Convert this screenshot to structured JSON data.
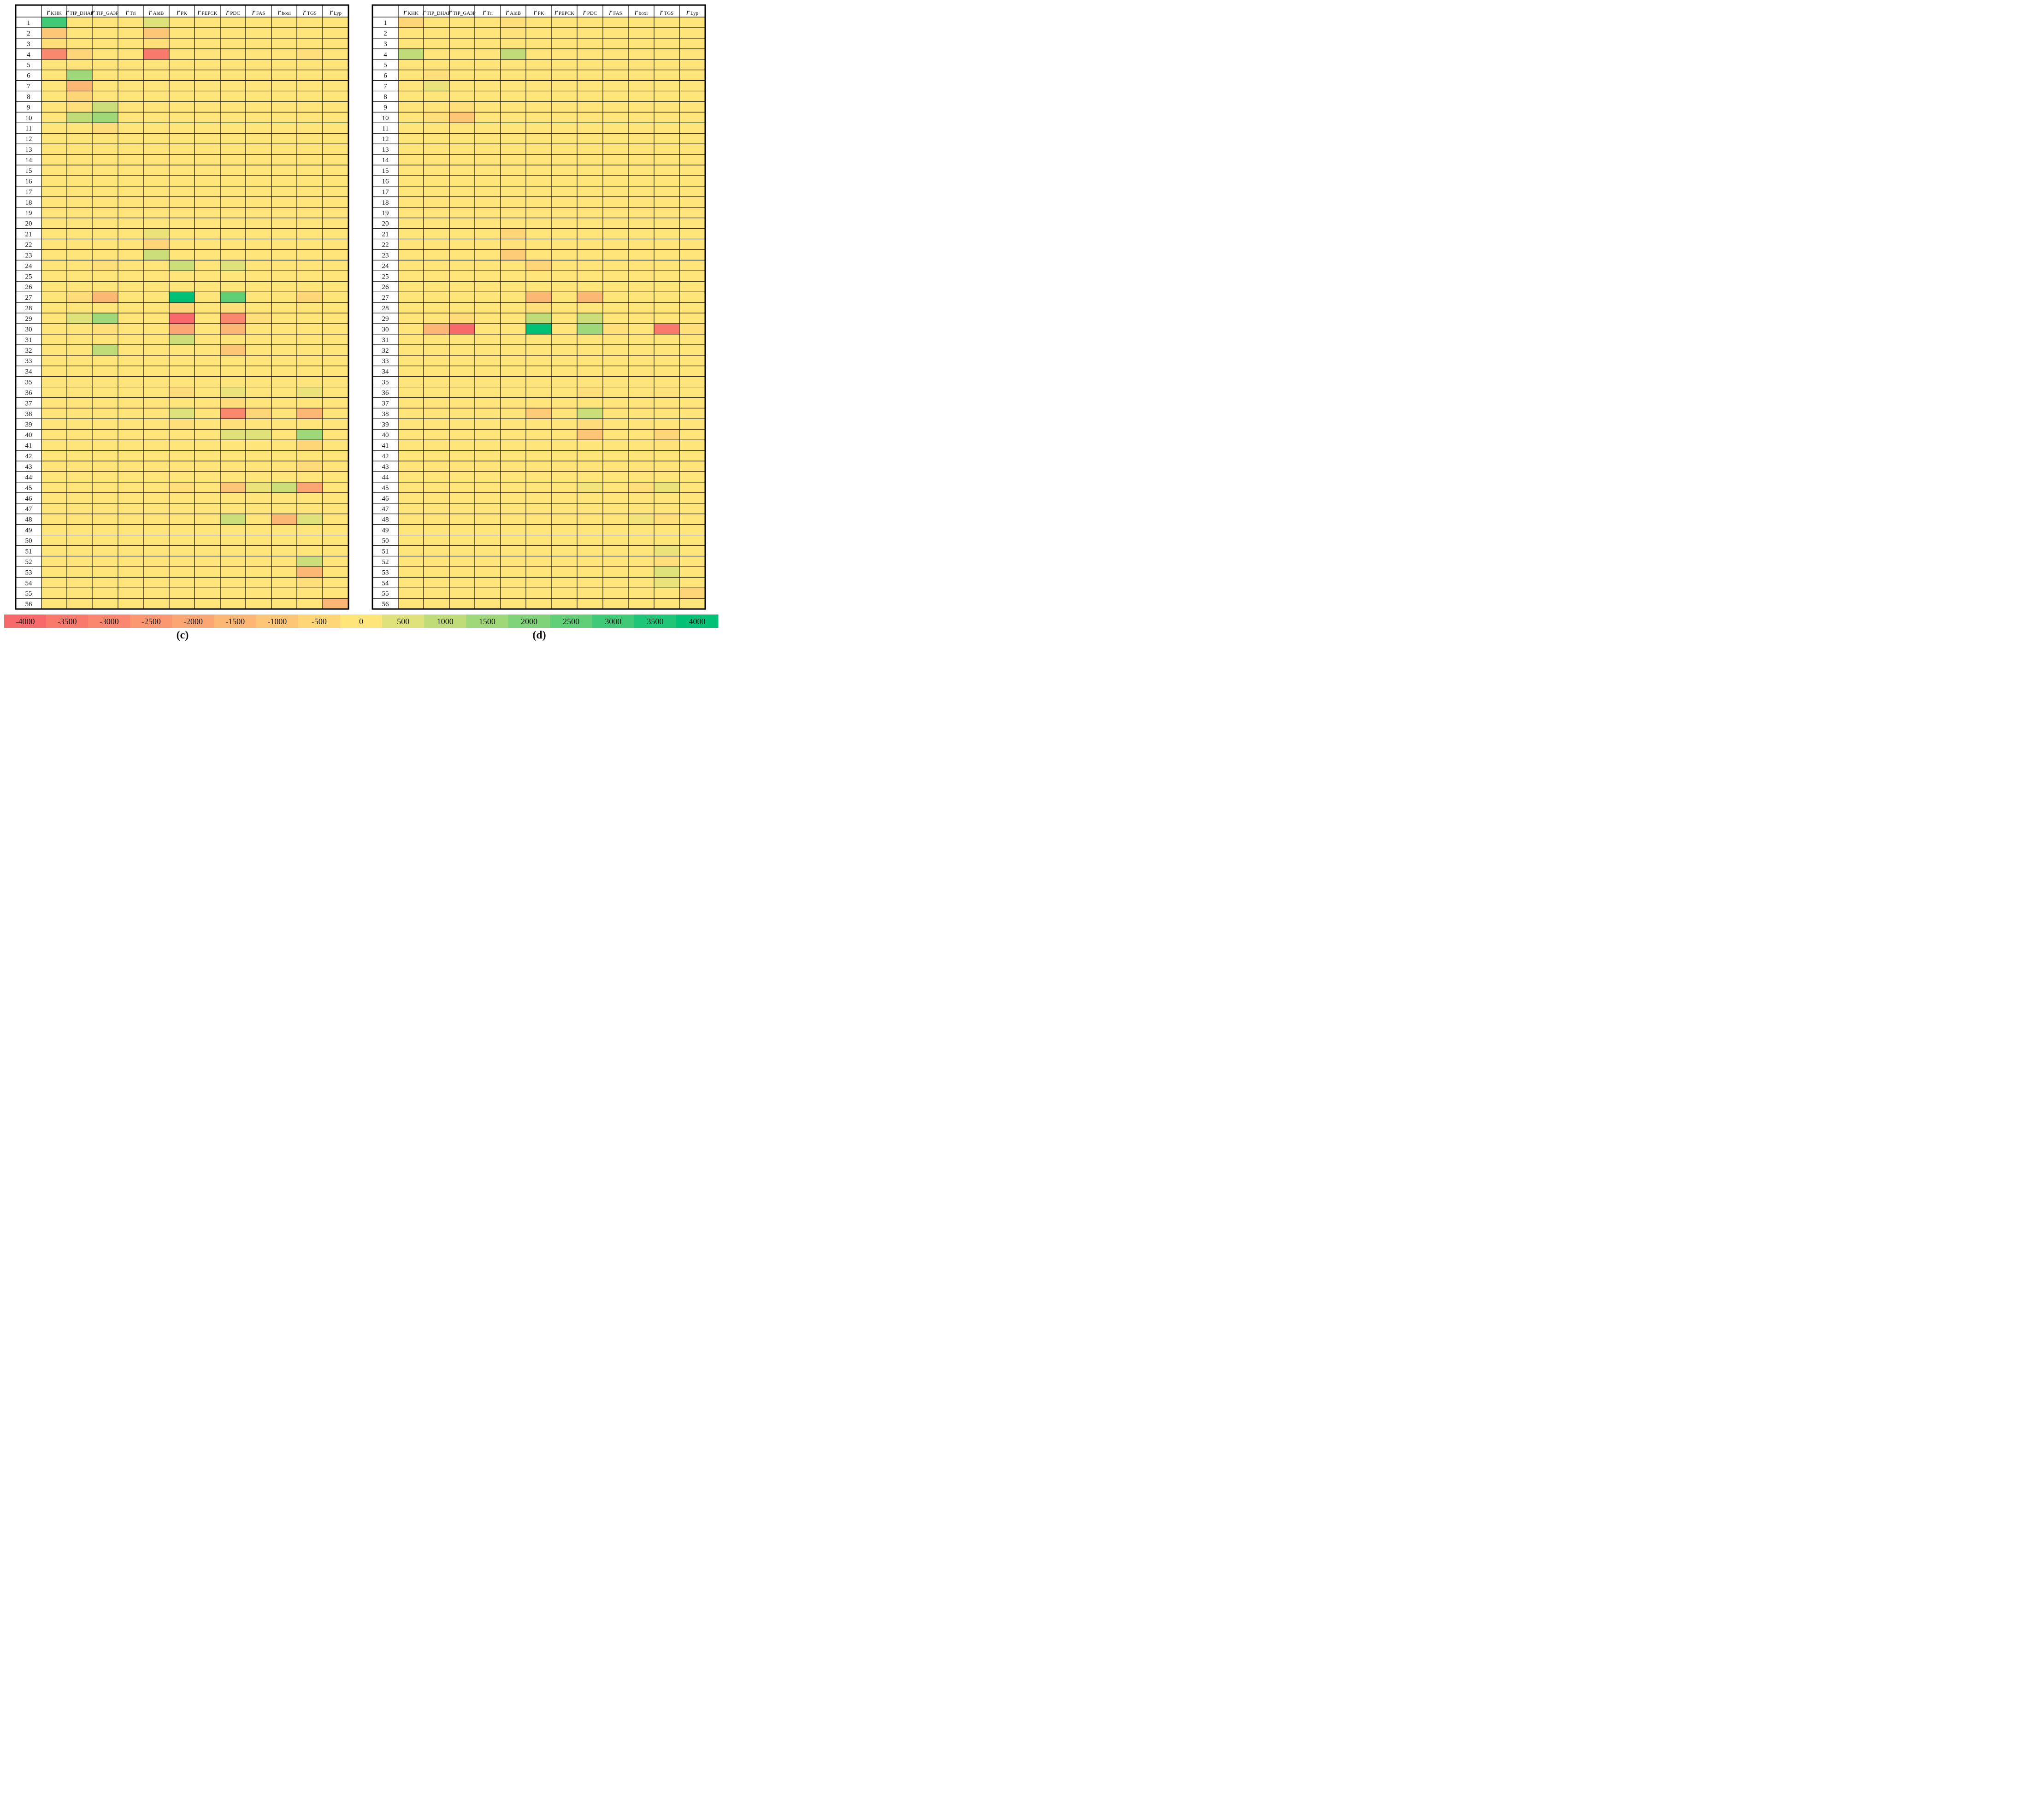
{
  "chart_data": [
    {
      "type": "heatmap",
      "panel_label": "c",
      "columns": [
        {
          "base": "r",
          "sub": "KHK"
        },
        {
          "base": "r",
          "sub": "TIP_DHAP"
        },
        {
          "base": "r",
          "sub": "TIP_GA3P"
        },
        {
          "base": "r",
          "sub": "Tri"
        },
        {
          "base": "r",
          "sub": "AldB"
        },
        {
          "base": "r",
          "sub": "PK"
        },
        {
          "base": "r",
          "sub": "PEPCK"
        },
        {
          "base": "r",
          "sub": "PDC"
        },
        {
          "base": "r",
          "sub": "FAS"
        },
        {
          "base": "r",
          "sub": "boxi"
        },
        {
          "base": "r",
          "sub": "TGS"
        },
        {
          "base": "r",
          "sub": "Lyp"
        }
      ],
      "rows": [
        "1",
        "2",
        "3",
        "4",
        "5",
        "6",
        "7",
        "8",
        "9",
        "10",
        "11",
        "12",
        "13",
        "14",
        "15",
        "16",
        "17",
        "18",
        "19",
        "20",
        "21",
        "22",
        "23",
        "24",
        "25",
        "26",
        "27",
        "28",
        "29",
        "30",
        "31",
        "32",
        "33",
        "34",
        "35",
        "36",
        "37",
        "38",
        "39",
        "40",
        "41",
        "42",
        "43",
        "44",
        "45",
        "46",
        "47",
        "48",
        "49",
        "50",
        "51",
        "52",
        "53",
        "54",
        "55",
        "56"
      ],
      "cells": [
        {
          "row": 1,
          "col": "KHK",
          "value": 3000
        },
        {
          "row": 1,
          "col": "AldB",
          "value": 500
        },
        {
          "row": 2,
          "col": "KHK",
          "value": -1000
        },
        {
          "row": 2,
          "col": "AldB",
          "value": -1000
        },
        {
          "row": 3,
          "col": "KHK",
          "value": -200
        },
        {
          "row": 3,
          "col": "AldB",
          "value": -200
        },
        {
          "row": 4,
          "col": "KHK",
          "value": -3000
        },
        {
          "row": 4,
          "col": "TIP_DHAP",
          "value": -500
        },
        {
          "row": 4,
          "col": "AldB",
          "value": -3500
        },
        {
          "row": 4,
          "col": "TGS",
          "value": -200
        },
        {
          "row": 6,
          "col": "TIP_DHAP",
          "value": 1500
        },
        {
          "row": 7,
          "col": "TIP_DHAP",
          "value": -1500
        },
        {
          "row": 8,
          "col": "TIP_DHAP",
          "value": -500
        },
        {
          "row": 9,
          "col": "TIP_DHAP",
          "value": -200
        },
        {
          "row": 9,
          "col": "TIP_GA3P",
          "value": 800
        },
        {
          "row": 10,
          "col": "TIP_DHAP",
          "value": 1000
        },
        {
          "row": 10,
          "col": "TIP_GA3P",
          "value": 1500
        },
        {
          "row": 11,
          "col": "TIP_GA3P",
          "value": -300
        },
        {
          "row": 21,
          "col": "AldB",
          "value": 300
        },
        {
          "row": 22,
          "col": "AldB",
          "value": -500
        },
        {
          "row": 23,
          "col": "AldB",
          "value": 800
        },
        {
          "row": 24,
          "col": "TIP_GA3P",
          "value": -200
        },
        {
          "row": 24,
          "col": "PK",
          "value": 800
        },
        {
          "row": 24,
          "col": "PDC",
          "value": 500
        },
        {
          "row": 27,
          "col": "TIP_DHAP",
          "value": -300
        },
        {
          "row": 27,
          "col": "TIP_GA3P",
          "value": -1500
        },
        {
          "row": 27,
          "col": "PK",
          "value": 4000
        },
        {
          "row": 27,
          "col": "PDC",
          "value": 2500
        },
        {
          "row": 27,
          "col": "TGS",
          "value": -500
        },
        {
          "row": 28,
          "col": "PK",
          "value": -500
        },
        {
          "row": 28,
          "col": "PDC",
          "value": -200
        },
        {
          "row": 29,
          "col": "TIP_DHAP",
          "value": 500
        },
        {
          "row": 29,
          "col": "TIP_GA3P",
          "value": 1500
        },
        {
          "row": 29,
          "col": "PK",
          "value": -4000
        },
        {
          "row": 29,
          "col": "PDC",
          "value": -3000
        },
        {
          "row": 29,
          "col": "FAS",
          "value": -200
        },
        {
          "row": 30,
          "col": "TIP_GA3P",
          "value": -200
        },
        {
          "row": 30,
          "col": "PK",
          "value": -2000
        },
        {
          "row": 30,
          "col": "PDC",
          "value": -1500
        },
        {
          "row": 31,
          "col": "PK",
          "value": 800
        },
        {
          "row": 32,
          "col": "TIP_GA3P",
          "value": 1000
        },
        {
          "row": 32,
          "col": "PDC",
          "value": -1000
        },
        {
          "row": 36,
          "col": "PK",
          "value": -300
        },
        {
          "row": 36,
          "col": "PDC",
          "value": 300
        },
        {
          "row": 36,
          "col": "TGS",
          "value": 300
        },
        {
          "row": 37,
          "col": "PDC",
          "value": -300
        },
        {
          "row": 38,
          "col": "PK",
          "value": 500
        },
        {
          "row": 38,
          "col": "PDC",
          "value": -3000
        },
        {
          "row": 38,
          "col": "FAS",
          "value": -500
        },
        {
          "row": 38,
          "col": "TGS",
          "value": -1500
        },
        {
          "row": 39,
          "col": "PK",
          "value": -200
        },
        {
          "row": 39,
          "col": "PDC",
          "value": -200
        },
        {
          "row": 40,
          "col": "PDC",
          "value": 500
        },
        {
          "row": 40,
          "col": "FAS",
          "value": 500
        },
        {
          "row": 40,
          "col": "TGS",
          "value": 1500
        },
        {
          "row": 41,
          "col": "TGS",
          "value": -500
        },
        {
          "row": 43,
          "col": "TGS",
          "value": -300
        },
        {
          "row": 45,
          "col": "PK",
          "value": -200
        },
        {
          "row": 45,
          "col": "PDC",
          "value": -1000
        },
        {
          "row": 45,
          "col": "FAS",
          "value": 300
        },
        {
          "row": 45,
          "col": "boxi",
          "value": 800
        },
        {
          "row": 45,
          "col": "TGS",
          "value": -2000
        },
        {
          "row": 48,
          "col": "PDC",
          "value": 800
        },
        {
          "row": 48,
          "col": "boxi",
          "value": -1500
        },
        {
          "row": 48,
          "col": "TGS",
          "value": 500
        },
        {
          "row": 52,
          "col": "TGS",
          "value": 800
        },
        {
          "row": 53,
          "col": "TGS",
          "value": -1500
        },
        {
          "row": 54,
          "col": "TGS",
          "value": -200
        },
        {
          "row": 56,
          "col": "Lyp",
          "value": -1500
        }
      ],
      "default_value": 0
    },
    {
      "type": "heatmap",
      "panel_label": "d",
      "columns": [
        {
          "base": "r",
          "sub": "KHK"
        },
        {
          "base": "r",
          "sub": "TIP_DHAP"
        },
        {
          "base": "r",
          "sub": "TIP_GA3P"
        },
        {
          "base": "r",
          "sub": "Tri"
        },
        {
          "base": "r",
          "sub": "AldB"
        },
        {
          "base": "r",
          "sub": "PK"
        },
        {
          "base": "r",
          "sub": "PEPCK"
        },
        {
          "base": "r",
          "sub": "PDC"
        },
        {
          "base": "r",
          "sub": "FAS"
        },
        {
          "base": "r",
          "sub": "boxi"
        },
        {
          "base": "r",
          "sub": "TGS"
        },
        {
          "base": "r",
          "sub": "Lyp"
        }
      ],
      "rows": [
        "1",
        "2",
        "3",
        "4",
        "5",
        "6",
        "7",
        "8",
        "9",
        "10",
        "11",
        "12",
        "13",
        "14",
        "15",
        "16",
        "17",
        "18",
        "19",
        "20",
        "21",
        "22",
        "23",
        "24",
        "25",
        "26",
        "27",
        "28",
        "29",
        "30",
        "31",
        "32",
        "33",
        "34",
        "35",
        "36",
        "37",
        "38",
        "39",
        "40",
        "41",
        "42",
        "43",
        "44",
        "45",
        "46",
        "47",
        "48",
        "49",
        "50",
        "51",
        "52",
        "53",
        "54",
        "55",
        "56"
      ],
      "cells": [
        {
          "row": 1,
          "col": "KHK",
          "value": -500
        },
        {
          "row": 1,
          "col": "AldB",
          "value": -200
        },
        {
          "row": 2,
          "col": "AldB",
          "value": -100
        },
        {
          "row": 4,
          "col": "KHK",
          "value": 1000
        },
        {
          "row": 4,
          "col": "AldB",
          "value": 1000
        },
        {
          "row": 6,
          "col": "TIP_DHAP",
          "value": -200
        },
        {
          "row": 7,
          "col": "TIP_DHAP",
          "value": 300
        },
        {
          "row": 9,
          "col": "TIP_GA3P",
          "value": -200
        },
        {
          "row": 10,
          "col": "TIP_DHAP",
          "value": -200
        },
        {
          "row": 10,
          "col": "TIP_GA3P",
          "value": -1000
        },
        {
          "row": 21,
          "col": "AldB",
          "value": -500
        },
        {
          "row": 22,
          "col": "AldB",
          "value": -100
        },
        {
          "row": 23,
          "col": "AldB",
          "value": -800
        },
        {
          "row": 24,
          "col": "PK",
          "value": -500
        },
        {
          "row": 27,
          "col": "PK",
          "value": -1500
        },
        {
          "row": 27,
          "col": "PDC",
          "value": -1500
        },
        {
          "row": 28,
          "col": "PK",
          "value": -200
        },
        {
          "row": 29,
          "col": "TIP_GA3P",
          "value": -300
        },
        {
          "row": 29,
          "col": "PK",
          "value": 1000
        },
        {
          "row": 29,
          "col": "PDC",
          "value": 800
        },
        {
          "row": 30,
          "col": "TIP_DHAP",
          "value": -1500
        },
        {
          "row": 30,
          "col": "TIP_GA3P",
          "value": -4000
        },
        {
          "row": 30,
          "col": "PK",
          "value": 4000
        },
        {
          "row": 30,
          "col": "PDC",
          "value": 1500
        },
        {
          "row": 30,
          "col": "FAS",
          "value": -200
        },
        {
          "row": 30,
          "col": "TGS",
          "value": -3500
        },
        {
          "row": 30,
          "col": "Lyp",
          "value": -200
        },
        {
          "row": 36,
          "col": "PDC",
          "value": -200
        },
        {
          "row": 36,
          "col": "TGS",
          "value": -100
        },
        {
          "row": 38,
          "col": "PK",
          "value": -800
        },
        {
          "row": 38,
          "col": "PDC",
          "value": 800
        },
        {
          "row": 39,
          "col": "PDC",
          "value": -300
        },
        {
          "row": 40,
          "col": "PDC",
          "value": -1000
        },
        {
          "row": 40,
          "col": "TGS",
          "value": -500
        },
        {
          "row": 41,
          "col": "TGS",
          "value": -100
        },
        {
          "row": 45,
          "col": "PDC",
          "value": 200
        },
        {
          "row": 45,
          "col": "boxi",
          "value": -200
        },
        {
          "row": 45,
          "col": "TGS",
          "value": 300
        },
        {
          "row": 48,
          "col": "boxi",
          "value": 200
        },
        {
          "row": 48,
          "col": "TGS",
          "value": -200
        },
        {
          "row": 51,
          "col": "TGS",
          "value": 300
        },
        {
          "row": 52,
          "col": "TGS",
          "value": -200
        },
        {
          "row": 53,
          "col": "TGS",
          "value": 500
        },
        {
          "row": 54,
          "col": "TGS",
          "value": 300
        },
        {
          "row": 55,
          "col": "Lyp",
          "value": -500
        }
      ],
      "default_value": 0
    }
  ],
  "color_scale": {
    "labels": [
      "-4000",
      "-3500",
      "-3000",
      "-2500",
      "-2000",
      "-1500",
      "-1000",
      "-500",
      "0",
      "500",
      "1000",
      "1500",
      "2000",
      "2500",
      "3000",
      "3500",
      "4000"
    ],
    "stops": [
      {
        "value": -4000,
        "color": "#f8696b"
      },
      {
        "value": 0,
        "color": "#ffe57a"
      },
      {
        "value": 4000,
        "color": "#00c176"
      }
    ]
  },
  "panel_labels": {
    "left": "(c)",
    "right": "(d)"
  }
}
